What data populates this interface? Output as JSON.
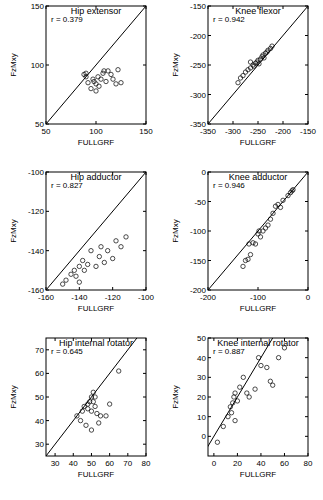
{
  "chart_data": [
    {
      "type": "scatter",
      "title": "Hip extensor",
      "annotation": "r = 0.379",
      "x_label": "FULLGRF",
      "y_label": "FzMxy",
      "color": "#000000",
      "marker": "circle",
      "x": [
        88,
        90,
        92,
        95,
        97,
        98,
        100,
        102,
        103,
        105,
        107,
        108,
        110,
        112,
        115,
        117,
        120,
        122,
        125,
        100,
        90
      ],
      "values": [
        92,
        90,
        85,
        80,
        88,
        86,
        84,
        90,
        82,
        88,
        93,
        95,
        86,
        95,
        92,
        88,
        84,
        96,
        85,
        78,
        93
      ],
      "xlim": [
        50,
        150
      ],
      "ylim": [
        50,
        150
      ],
      "xticks": [
        50,
        100,
        150
      ],
      "yticks": [
        50,
        100,
        150
      ]
    },
    {
      "type": "scatter",
      "title": "Knee flexor",
      "annotation": "r = 0.942",
      "x_label": "FULLGRF",
      "y_label": "FzMxy",
      "color": "#000000",
      "marker": "circle",
      "x": [
        -290,
        -285,
        -280,
        -275,
        -270,
        -265,
        -260,
        -258,
        -255,
        -252,
        -250,
        -248,
        -245,
        -242,
        -240,
        -238,
        -235,
        -232,
        -230,
        -225,
        -222,
        -265
      ],
      "values": [
        -280,
        -272,
        -268,
        -262,
        -258,
        -255,
        -250,
        -252,
        -247,
        -245,
        -242,
        -248,
        -240,
        -236,
        -233,
        -238,
        -230,
        -228,
        -225,
        -222,
        -218,
        -245
      ],
      "xlim": [
        -350,
        -150
      ],
      "ylim": [
        -350,
        -150
      ],
      "xticks": [
        -350,
        -300,
        -250,
        -200,
        -150
      ],
      "yticks": [
        -350,
        -300,
        -250,
        -200,
        -150
      ]
    },
    {
      "type": "scatter",
      "title": "Hip adductor",
      "annotation": "r = 0.827",
      "x_label": "FULLGRF",
      "y_label": "FzMxy",
      "color": "#000000",
      "marker": "circle",
      "x": [
        -150,
        -148,
        -145,
        -143,
        -142,
        -140,
        -138,
        -137,
        -135,
        -133,
        -130,
        -128,
        -127,
        -125,
        -123,
        -120,
        -118,
        -115,
        -112,
        -140
      ],
      "values": [
        -157,
        -155,
        -152,
        -150,
        -153,
        -148,
        -145,
        -150,
        -147,
        -140,
        -148,
        -143,
        -138,
        -146,
        -140,
        -144,
        -135,
        -138,
        -133,
        -156
      ],
      "xlim": [
        -160,
        -100
      ],
      "ylim": [
        -160,
        -100
      ],
      "xticks": [
        -160,
        -140,
        -120,
        -100
      ],
      "yticks": [
        -160,
        -140,
        -120,
        -100
      ]
    },
    {
      "type": "scatter",
      "title": "Knee adductor",
      "annotation": "r = 0.946",
      "x_label": "FULLGRF",
      "y_label": "FzMxy",
      "color": "#000000",
      "marker": "circle",
      "x": [
        -130,
        -125,
        -120,
        -118,
        -115,
        -110,
        -105,
        -100,
        -98,
        -95,
        -90,
        -85,
        -80,
        -75,
        -70,
        -65,
        -60,
        -55,
        -50,
        -40,
        -35,
        -32,
        -30
      ],
      "values": [
        -160,
        -150,
        -148,
        -122,
        -140,
        -120,
        -122,
        -105,
        -100,
        -110,
        -100,
        -95,
        -90,
        -80,
        -70,
        -58,
        -55,
        -60,
        -48,
        -40,
        -35,
        -32,
        -30
      ],
      "xlim": [
        -200,
        0
      ],
      "ylim": [
        -200,
        0
      ],
      "xticks": [
        -200,
        -100,
        0
      ],
      "yticks": [
        -200,
        -150,
        -100,
        -50,
        0
      ]
    },
    {
      "type": "scatter",
      "title": "Hip internal rotator",
      "annotation": "r = 0.645",
      "x_label": "FULLGRF",
      "y_label": "FzMxy",
      "color": "#000000",
      "marker": "circle",
      "x": [
        42,
        44,
        45,
        46,
        47,
        48,
        48,
        49,
        50,
        50,
        51,
        51,
        52,
        52,
        53,
        54,
        55,
        58,
        60,
        65,
        50
      ],
      "values": [
        42,
        40,
        44,
        46,
        38,
        47,
        45,
        48,
        44,
        36,
        48,
        52,
        50,
        46,
        43,
        39,
        42,
        42,
        47,
        61,
        50
      ],
      "xlim": [
        25,
        80
      ],
      "ylim": [
        25,
        75
      ],
      "xticks": [
        30,
        40,
        50,
        60,
        70,
        80
      ],
      "yticks": [
        30,
        40,
        50,
        60,
        70
      ]
    },
    {
      "type": "scatter",
      "title": "Knee internal rotator",
      "annotation": "r = 0.887",
      "x_label": "FULLGRF",
      "y_label": "FzMxy",
      "color": "#000000",
      "marker": "circle",
      "x": [
        3,
        8,
        12,
        14,
        15,
        16,
        17,
        18,
        20,
        22,
        25,
        28,
        30,
        35,
        38,
        40,
        45,
        48,
        50,
        55,
        60,
        18
      ],
      "values": [
        -3,
        5,
        10,
        15,
        12,
        17,
        20,
        22,
        18,
        25,
        30,
        22,
        20,
        24,
        40,
        36,
        35,
        28,
        26,
        40,
        45,
        8
      ],
      "xlim": [
        -5,
        80
      ],
      "ylim": [
        -10,
        50
      ],
      "xticks": [
        0,
        20,
        40,
        60,
        80
      ],
      "yticks": [
        0,
        10,
        20,
        30,
        40,
        50
      ]
    }
  ]
}
